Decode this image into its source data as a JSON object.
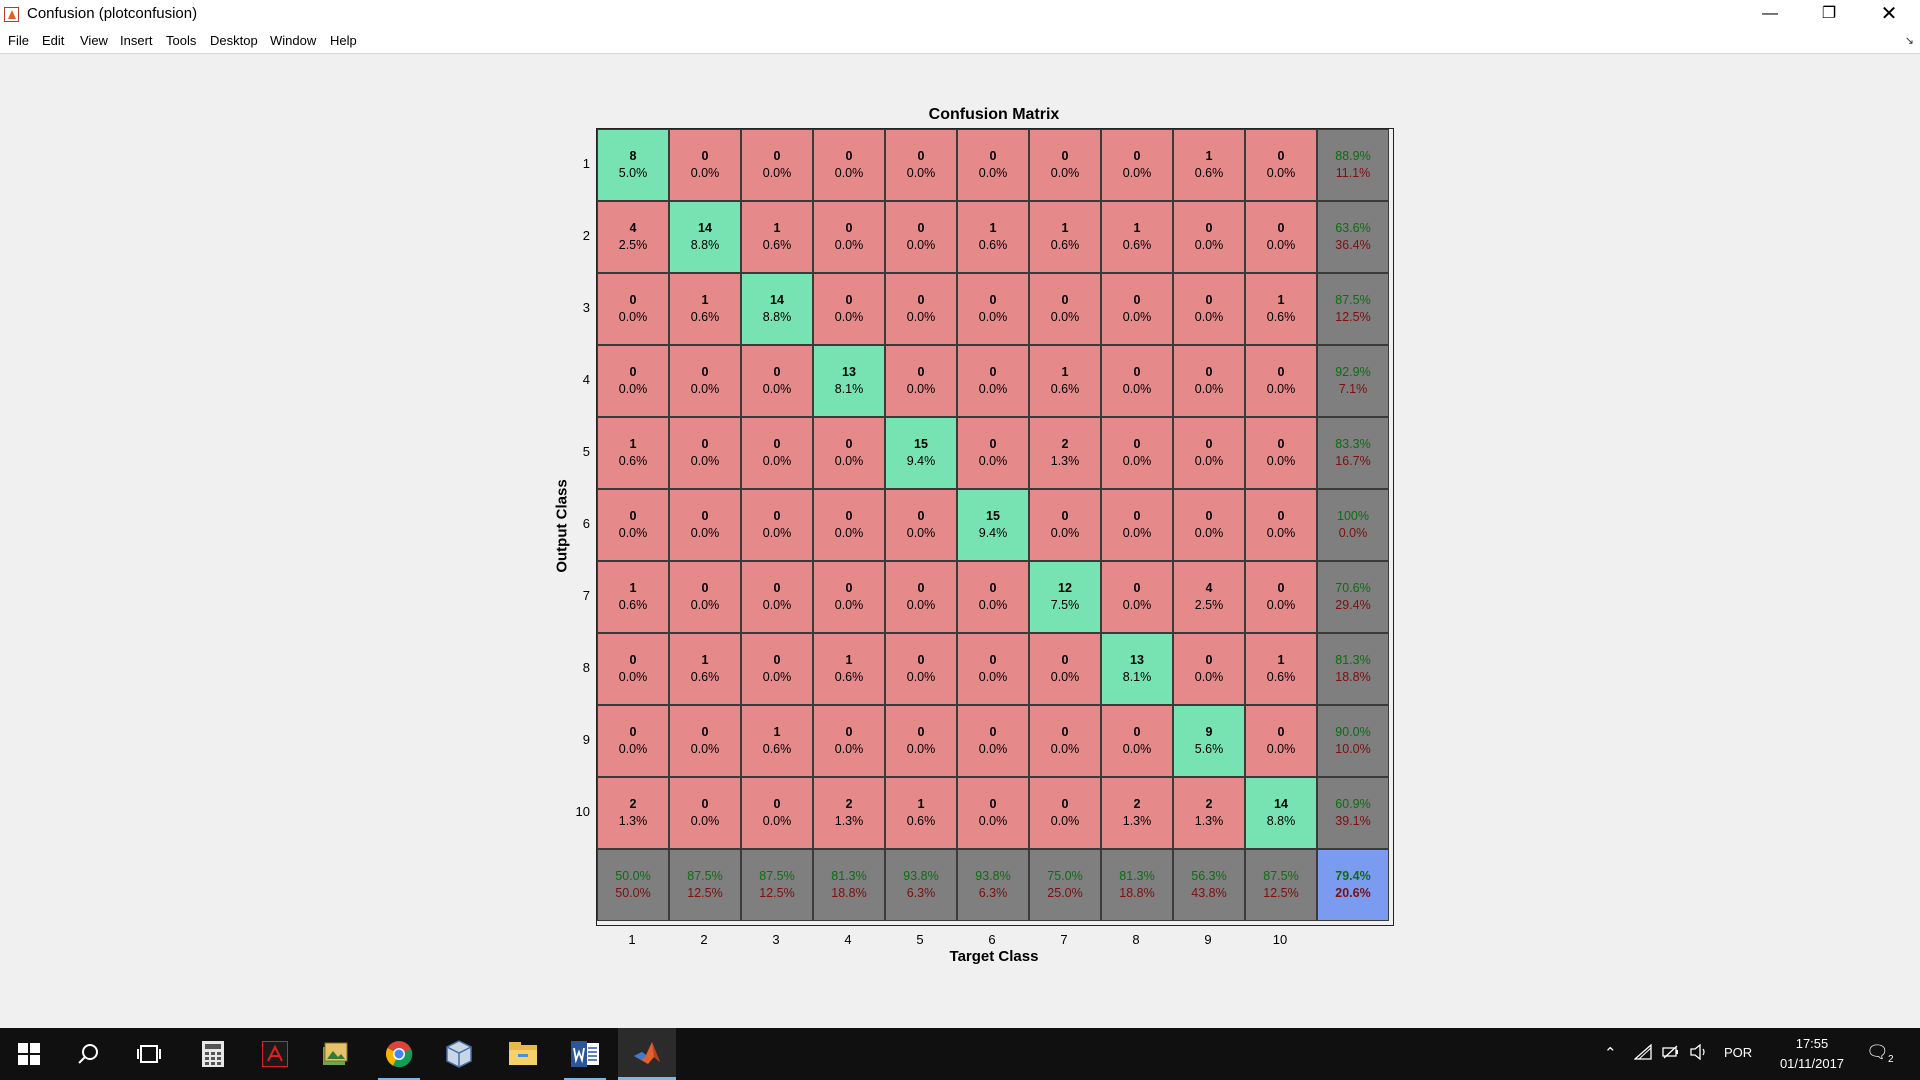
{
  "window": {
    "title": "Confusion (plotconfusion)",
    "minimize_icon": "minimize-icon",
    "maximize_icon": "restore-icon",
    "close_icon": "close-icon"
  },
  "menu": [
    "File",
    "Edit",
    "View",
    "Insert",
    "Tools",
    "Desktop",
    "Window",
    "Help"
  ],
  "chart_data": {
    "type": "heatmap",
    "title": "Confusion Matrix",
    "xlabel": "Target Class",
    "ylabel": "Output Class",
    "x_ticks": [
      "1",
      "2",
      "3",
      "4",
      "5",
      "6",
      "7",
      "8",
      "9",
      "10"
    ],
    "y_ticks": [
      "1",
      "2",
      "3",
      "4",
      "5",
      "6",
      "7",
      "8",
      "9",
      "10"
    ],
    "counts": [
      [
        8,
        0,
        0,
        0,
        0,
        0,
        0,
        0,
        1,
        0
      ],
      [
        4,
        14,
        1,
        0,
        0,
        1,
        1,
        1,
        0,
        0
      ],
      [
        0,
        1,
        14,
        0,
        0,
        0,
        0,
        0,
        0,
        1
      ],
      [
        0,
        0,
        0,
        13,
        0,
        0,
        1,
        0,
        0,
        0
      ],
      [
        1,
        0,
        0,
        0,
        15,
        0,
        2,
        0,
        0,
        0
      ],
      [
        0,
        0,
        0,
        0,
        0,
        15,
        0,
        0,
        0,
        0
      ],
      [
        1,
        0,
        0,
        0,
        0,
        0,
        12,
        0,
        4,
        0
      ],
      [
        0,
        1,
        0,
        1,
        0,
        0,
        0,
        13,
        0,
        1
      ],
      [
        0,
        0,
        1,
        0,
        0,
        0,
        0,
        0,
        9,
        0
      ],
      [
        2,
        0,
        0,
        2,
        1,
        0,
        0,
        2,
        2,
        14
      ]
    ],
    "percents": [
      [
        "5.0%",
        "0.0%",
        "0.0%",
        "0.0%",
        "0.0%",
        "0.0%",
        "0.0%",
        "0.0%",
        "0.6%",
        "0.0%"
      ],
      [
        "2.5%",
        "8.8%",
        "0.6%",
        "0.0%",
        "0.0%",
        "0.6%",
        "0.6%",
        "0.6%",
        "0.0%",
        "0.0%"
      ],
      [
        "0.0%",
        "0.6%",
        "8.8%",
        "0.0%",
        "0.0%",
        "0.0%",
        "0.0%",
        "0.0%",
        "0.0%",
        "0.6%"
      ],
      [
        "0.0%",
        "0.0%",
        "0.0%",
        "8.1%",
        "0.0%",
        "0.0%",
        "0.6%",
        "0.0%",
        "0.0%",
        "0.0%"
      ],
      [
        "0.6%",
        "0.0%",
        "0.0%",
        "0.0%",
        "9.4%",
        "0.0%",
        "1.3%",
        "0.0%",
        "0.0%",
        "0.0%"
      ],
      [
        "0.0%",
        "0.0%",
        "0.0%",
        "0.0%",
        "0.0%",
        "9.4%",
        "0.0%",
        "0.0%",
        "0.0%",
        "0.0%"
      ],
      [
        "0.6%",
        "0.0%",
        "0.0%",
        "0.0%",
        "0.0%",
        "0.0%",
        "7.5%",
        "0.0%",
        "2.5%",
        "0.0%"
      ],
      [
        "0.0%",
        "0.6%",
        "0.0%",
        "0.6%",
        "0.0%",
        "0.0%",
        "0.0%",
        "8.1%",
        "0.0%",
        "0.6%"
      ],
      [
        "0.0%",
        "0.0%",
        "0.6%",
        "0.0%",
        "0.0%",
        "0.0%",
        "0.0%",
        "0.0%",
        "5.6%",
        "0.0%"
      ],
      [
        "1.3%",
        "0.0%",
        "0.0%",
        "1.3%",
        "0.6%",
        "0.0%",
        "0.0%",
        "1.3%",
        "1.3%",
        "8.8%"
      ]
    ],
    "row_summary": [
      [
        "88.9%",
        "11.1%"
      ],
      [
        "63.6%",
        "36.4%"
      ],
      [
        "87.5%",
        "12.5%"
      ],
      [
        "92.9%",
        "7.1%"
      ],
      [
        "83.3%",
        "16.7%"
      ],
      [
        "100%",
        "0.0%"
      ],
      [
        "70.6%",
        "29.4%"
      ],
      [
        "81.3%",
        "18.8%"
      ],
      [
        "90.0%",
        "10.0%"
      ],
      [
        "60.9%",
        "39.1%"
      ]
    ],
    "col_summary": [
      [
        "50.0%",
        "50.0%"
      ],
      [
        "87.5%",
        "12.5%"
      ],
      [
        "87.5%",
        "12.5%"
      ],
      [
        "81.3%",
        "18.8%"
      ],
      [
        "93.8%",
        "6.3%"
      ],
      [
        "93.8%",
        "6.3%"
      ],
      [
        "75.0%",
        "25.0%"
      ],
      [
        "81.3%",
        "18.8%"
      ],
      [
        "56.3%",
        "43.8%"
      ],
      [
        "87.5%",
        "12.5%"
      ]
    ],
    "overall": [
      "79.4%",
      "20.6%"
    ],
    "colors": {
      "correct": "#78e3b2",
      "incorrect": "#e6898a",
      "summary": "#7f7f7f",
      "overall": "#7b9bf0",
      "accuracy_text": "#0f6b12",
      "error_text": "#7a1010"
    }
  },
  "taskbar": {
    "apps": [
      "start-icon",
      "search-icon",
      "task-view-icon",
      "calculator-icon",
      "pdf-reader-icon",
      "image-viewer-icon",
      "chrome-icon",
      "virtualbox-icon",
      "file-explorer-icon",
      "word-icon",
      "matlab-icon"
    ],
    "tray_icons": [
      "chevron-up-icon",
      "network-icon",
      "battery-icon",
      "volume-icon"
    ],
    "language": "POR",
    "time": "17:55",
    "date": "01/11/2017",
    "notification_count": "2"
  }
}
